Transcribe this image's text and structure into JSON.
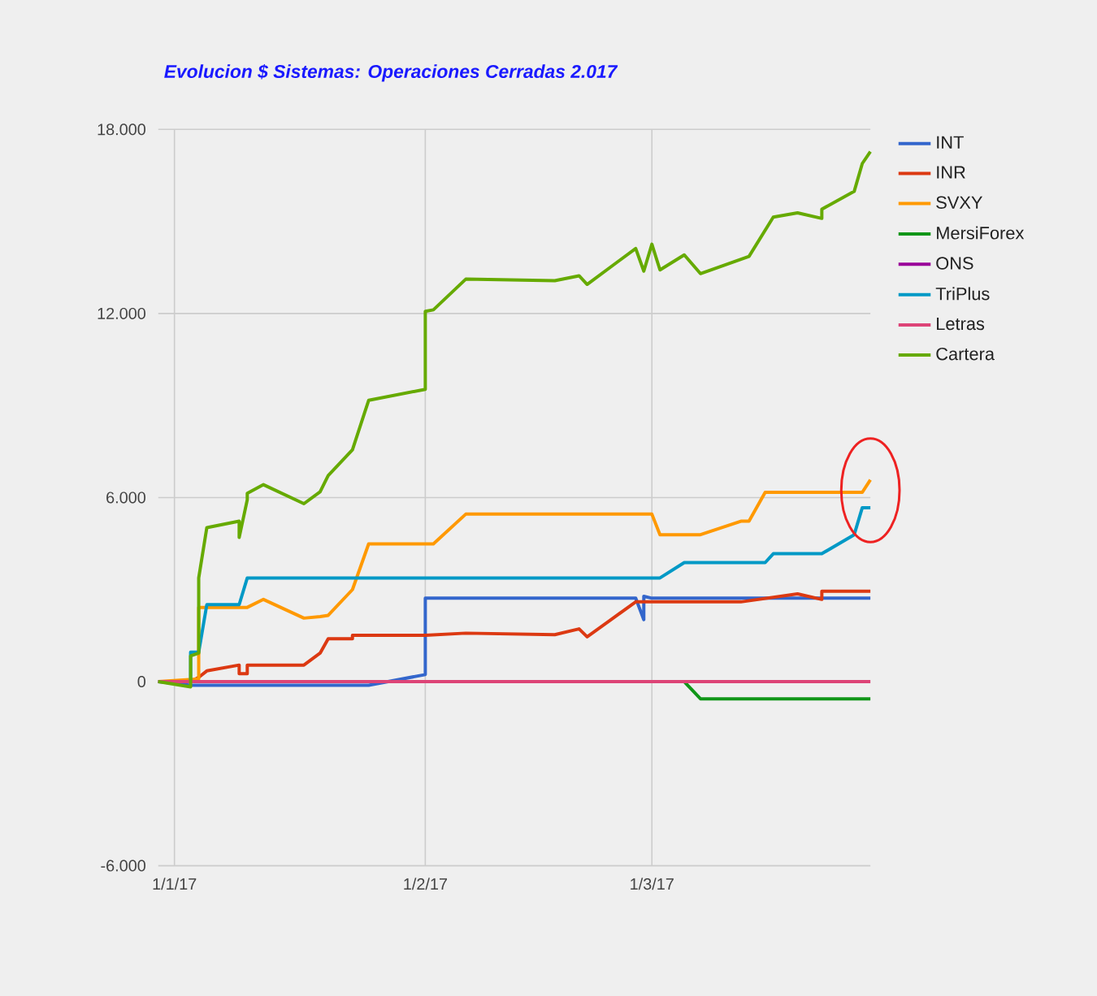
{
  "chart_data": {
    "type": "line",
    "title": "Evolucion $ Sistemas: Operaciones Cerradas 2.017",
    "xlim": [
      "2016-12-30",
      "2017-03-28"
    ],
    "xticks": [
      {
        "value": "2017-01-01",
        "label": "1/1/17"
      },
      {
        "value": "2017-02-01",
        "label": "1/2/17"
      },
      {
        "value": "2017-03-01",
        "label": "1/3/17"
      }
    ],
    "ylim": [
      -6000,
      18000
    ],
    "yticks": [
      {
        "value": -6000,
        "label": "-6.000"
      },
      {
        "value": 0,
        "label": "0"
      },
      {
        "value": 6000,
        "label": "6.000"
      },
      {
        "value": 12000,
        "label": "12.000"
      },
      {
        "value": 18000,
        "label": "18.000"
      }
    ],
    "grid": true,
    "legend": "right",
    "series": [
      {
        "name": "INT",
        "color": "#3366cc",
        "x": [
          "2016-12-30",
          "2017-01-03",
          "2017-01-25",
          "2017-02-01",
          "2017-02-01",
          "2017-02-27",
          "2017-02-28",
          "2017-02-28",
          "2017-03-01",
          "2017-03-28"
        ],
        "values": [
          0,
          -120,
          -120,
          230,
          2720,
          2720,
          2020,
          2780,
          2720,
          2720
        ]
      },
      {
        "name": "INR",
        "color": "#dc3912",
        "x": [
          "2016-12-30",
          "2017-01-03",
          "2017-01-04",
          "2017-01-05",
          "2017-01-09",
          "2017-01-09",
          "2017-01-10",
          "2017-01-10",
          "2017-01-17",
          "2017-01-19",
          "2017-01-20",
          "2017-01-23",
          "2017-01-23",
          "2017-02-01",
          "2017-02-06",
          "2017-02-17",
          "2017-02-20",
          "2017-02-21",
          "2017-02-27",
          "2017-03-12",
          "2017-03-19",
          "2017-03-22",
          "2017-03-22",
          "2017-03-28"
        ],
        "values": [
          0,
          0,
          140,
          350,
          540,
          260,
          260,
          540,
          540,
          930,
          1400,
          1400,
          1510,
          1510,
          1580,
          1530,
          1720,
          1460,
          2600,
          2600,
          2860,
          2680,
          2950,
          2950
        ]
      },
      {
        "name": "SVXY",
        "color": "#ff9900",
        "x": [
          "2016-12-30",
          "2017-01-04",
          "2017-01-04",
          "2017-01-10",
          "2017-01-12",
          "2017-01-17",
          "2017-01-19",
          "2017-01-20",
          "2017-01-23",
          "2017-01-25",
          "2017-02-02",
          "2017-02-06",
          "2017-03-01",
          "2017-03-02",
          "2017-03-07",
          "2017-03-12",
          "2017-03-13",
          "2017-03-15",
          "2017-03-27",
          "2017-03-28"
        ],
        "values": [
          0,
          90,
          2420,
          2420,
          2680,
          2070,
          2120,
          2160,
          3000,
          4490,
          4490,
          5460,
          5460,
          4790,
          4790,
          5230,
          5230,
          6170,
          6170,
          6580
        ]
      },
      {
        "name": "MersiForex",
        "color": "#109618",
        "x": [
          "2017-03-05",
          "2017-03-07",
          "2017-03-28"
        ],
        "values": [
          0,
          -560,
          -560
        ]
      },
      {
        "name": "ONS",
        "color": "#990099",
        "values": [
          null,
          null
        ]
      },
      {
        "name": "TriPlus",
        "color": "#0099c6",
        "x": [
          "2016-12-30",
          "2017-01-03",
          "2017-01-03",
          "2017-01-04",
          "2017-01-05",
          "2017-01-09",
          "2017-01-10",
          "2017-03-02",
          "2017-03-05",
          "2017-03-15",
          "2017-03-16",
          "2017-03-22",
          "2017-03-26",
          "2017-03-27",
          "2017-03-28"
        ],
        "values": [
          0,
          0,
          960,
          960,
          2510,
          2510,
          3380,
          3380,
          3880,
          3880,
          4170,
          4170,
          4790,
          5670,
          5670
        ]
      },
      {
        "name": "Letras",
        "color": "#dd4477",
        "x": [
          "2016-12-30",
          "2017-03-28"
        ],
        "values": [
          0,
          0
        ]
      },
      {
        "name": "Cartera",
        "color": "#66aa00",
        "x": [
          "2016-12-30",
          "2017-01-03",
          "2017-01-03",
          "2017-01-04",
          "2017-01-04",
          "2017-01-05",
          "2017-01-09",
          "2017-01-09",
          "2017-01-10",
          "2017-01-10",
          "2017-01-12",
          "2017-01-17",
          "2017-01-19",
          "2017-01-20",
          "2017-01-23",
          "2017-01-25",
          "2017-02-01",
          "2017-02-01",
          "2017-02-02",
          "2017-02-06",
          "2017-02-17",
          "2017-02-20",
          "2017-02-21",
          "2017-02-27",
          "2017-02-28",
          "2017-03-01",
          "2017-03-02",
          "2017-03-05",
          "2017-03-07",
          "2017-03-13",
          "2017-03-16",
          "2017-03-19",
          "2017-03-22",
          "2017-03-22",
          "2017-03-26",
          "2017-03-27",
          "2017-03-28"
        ],
        "values": [
          0,
          -170,
          840,
          930,
          3380,
          5020,
          5230,
          4700,
          5930,
          6140,
          6420,
          5800,
          6190,
          6720,
          7560,
          9170,
          9530,
          12070,
          12120,
          13120,
          13070,
          13230,
          12950,
          14120,
          13380,
          14260,
          13420,
          13910,
          13300,
          13860,
          15140,
          15280,
          15100,
          15400,
          15980,
          16890,
          17280
        ]
      }
    ]
  }
}
